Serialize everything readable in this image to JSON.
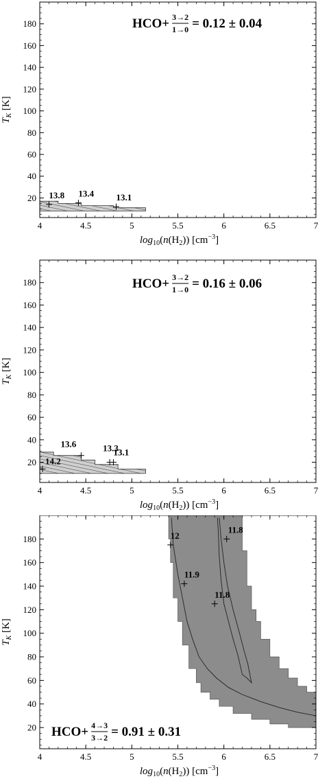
{
  "chart_data": [
    {
      "type": "contour",
      "xlabel": "log10(n(H2)) [cm^-3]",
      "ylabel": "T_K [K]",
      "xlim": [
        4,
        7
      ],
      "ylim": [
        2,
        200
      ],
      "x_ticks": [
        "4",
        "4.5",
        "5",
        "5.5",
        "6",
        "6.5",
        "7"
      ],
      "y_ticks": [
        "20",
        "40",
        "60",
        "80",
        "100",
        "120",
        "140",
        "160",
        "180"
      ],
      "ratio_label": {
        "species": "HCO+",
        "upper": "3→2",
        "lower": "1→0",
        "value": "= 0.12 ± 0.04"
      },
      "legend_position": "top-right",
      "region_style": "hatched",
      "region": [
        [
          4,
          8
        ],
        [
          5.15,
          8
        ],
        [
          5.15,
          11
        ],
        [
          4.8,
          11
        ],
        [
          4.8,
          13
        ],
        [
          4.45,
          13
        ],
        [
          4.45,
          15
        ],
        [
          4.2,
          15
        ],
        [
          4.2,
          17
        ],
        [
          4,
          17
        ]
      ],
      "markers": [
        {
          "x": 4.1,
          "y": 14,
          "label": "13.8"
        },
        {
          "x": 4.42,
          "y": 15.5,
          "label": "13.4"
        },
        {
          "x": 4.83,
          "y": 12,
          "label": "13.1"
        }
      ]
    },
    {
      "type": "contour",
      "xlabel": "log10(n(H2)) [cm^-3]",
      "ylabel": "T_K [K]",
      "xlim": [
        4,
        7
      ],
      "ylim": [
        2,
        200
      ],
      "x_ticks": [
        "4",
        "4.5",
        "5",
        "5.5",
        "6",
        "6.5",
        "7"
      ],
      "y_ticks": [
        "20",
        "40",
        "60",
        "80",
        "100",
        "120",
        "140",
        "160",
        "180"
      ],
      "ratio_label": {
        "species": "HCO+",
        "upper": "3→2",
        "lower": "1→0",
        "value": "= 0.16 ± 0.06"
      },
      "legend_position": "top-right",
      "region_style": "hatched",
      "region": [
        [
          4,
          10
        ],
        [
          5.15,
          10
        ],
        [
          5.15,
          14
        ],
        [
          4.85,
          14
        ],
        [
          4.85,
          18
        ],
        [
          4.6,
          18
        ],
        [
          4.6,
          22
        ],
        [
          4.45,
          22
        ],
        [
          4.45,
          26
        ],
        [
          4.15,
          26
        ],
        [
          4.15,
          29
        ],
        [
          4,
          29
        ]
      ],
      "markers": [
        {
          "x": 4.03,
          "y": 14,
          "label": "14.2"
        },
        {
          "x": 4.45,
          "y": 26,
          "label": "13.6"
        },
        {
          "x": 4.76,
          "y": 20,
          "label": "13.3"
        },
        {
          "x": 4.8,
          "y": 20,
          "label": "13.1"
        }
      ]
    },
    {
      "type": "contour",
      "xlabel": "log10(n(H2)) [cm^-3]",
      "ylabel": "T_K [K]",
      "xlim": [
        4,
        7
      ],
      "ylim": [
        2,
        200
      ],
      "x_ticks": [
        "4",
        "4.5",
        "5",
        "5.5",
        "6",
        "6.5",
        "7"
      ],
      "y_ticks": [
        "20",
        "40",
        "60",
        "80",
        "100",
        "120",
        "140",
        "160",
        "180"
      ],
      "ratio_label": {
        "species": "HCO+",
        "upper": "4→3",
        "lower": "3→2",
        "value": "= 0.91 ± 0.31"
      },
      "legend_position": "bottom-left",
      "region_style": "filled",
      "region": [
        [
          5.4,
          200
        ],
        [
          6.2,
          200
        ],
        [
          6.2,
          170
        ],
        [
          6.25,
          170
        ],
        [
          6.25,
          140
        ],
        [
          6.3,
          140
        ],
        [
          6.3,
          120
        ],
        [
          6.35,
          120
        ],
        [
          6.35,
          110
        ],
        [
          6.4,
          110
        ],
        [
          6.4,
          95
        ],
        [
          6.5,
          95
        ],
        [
          6.5,
          80
        ],
        [
          6.6,
          80
        ],
        [
          6.6,
          70
        ],
        [
          6.7,
          70
        ],
        [
          6.7,
          62
        ],
        [
          6.8,
          62
        ],
        [
          6.8,
          55
        ],
        [
          6.9,
          55
        ],
        [
          6.9,
          50
        ],
        [
          7,
          50
        ],
        [
          7,
          20
        ],
        [
          6.7,
          20
        ],
        [
          6.7,
          23
        ],
        [
          6.5,
          23
        ],
        [
          6.5,
          27
        ],
        [
          6.3,
          27
        ],
        [
          6.3,
          32
        ],
        [
          6.1,
          32
        ],
        [
          6.1,
          38
        ],
        [
          5.95,
          38
        ],
        [
          5.95,
          44
        ],
        [
          5.85,
          44
        ],
        [
          5.85,
          50
        ],
        [
          5.75,
          50
        ],
        [
          5.75,
          58
        ],
        [
          5.7,
          58
        ],
        [
          5.7,
          70
        ],
        [
          5.62,
          70
        ],
        [
          5.62,
          90
        ],
        [
          5.55,
          90
        ],
        [
          5.55,
          110
        ],
        [
          5.5,
          110
        ],
        [
          5.5,
          130
        ],
        [
          5.45,
          130
        ],
        [
          5.45,
          160
        ],
        [
          5.42,
          160
        ],
        [
          5.42,
          180
        ],
        [
          5.4,
          180
        ]
      ],
      "contour_lines": [
        [
          [
            5.43,
            198
          ],
          [
            5.45,
            175
          ],
          [
            5.5,
            150
          ],
          [
            5.55,
            130
          ],
          [
            5.6,
            110
          ],
          [
            5.66,
            95
          ],
          [
            5.73,
            80
          ],
          [
            5.82,
            70
          ],
          [
            5.92,
            62
          ],
          [
            6.05,
            54
          ],
          [
            6.2,
            48
          ],
          [
            6.4,
            42
          ],
          [
            6.6,
            37
          ],
          [
            6.8,
            33
          ],
          [
            7,
            30
          ]
        ],
        [
          [
            5.95,
            198
          ],
          [
            5.97,
            180
          ],
          [
            6.0,
            160
          ],
          [
            6.04,
            140
          ],
          [
            6.1,
            120
          ],
          [
            6.17,
            100
          ],
          [
            6.22,
            85
          ],
          [
            6.26,
            74
          ],
          [
            6.29,
            62
          ],
          [
            6.3,
            58
          ],
          [
            6.25,
            62
          ],
          [
            6.2,
            65
          ],
          [
            6.18,
            72
          ],
          [
            6.15,
            82
          ],
          [
            6.1,
            95
          ],
          [
            6.05,
            110
          ],
          [
            6.0,
            125
          ],
          [
            5.97,
            145
          ],
          [
            5.95,
            165
          ],
          [
            5.94,
            185
          ],
          [
            5.93,
            198
          ]
        ]
      ],
      "markers": [
        {
          "x": 5.42,
          "y": 175,
          "label": "12"
        },
        {
          "x": 5.57,
          "y": 142,
          "label": "11.9"
        },
        {
          "x": 5.9,
          "y": 125,
          "label": "11.8"
        },
        {
          "x": 6.03,
          "y": 180,
          "label": "11.8"
        }
      ]
    }
  ]
}
